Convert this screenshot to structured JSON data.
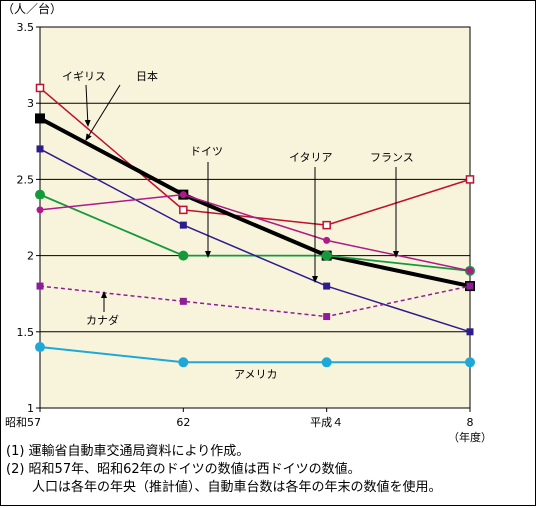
{
  "chart_data": {
    "type": "line",
    "unit_label": "（人／台）",
    "x": [
      "昭和57",
      "62",
      "平成４",
      "8"
    ],
    "x_suffix": "（年度）",
    "ylim": [
      1,
      3.5
    ],
    "yticks": [
      "1",
      "1.5",
      "2",
      "2.5",
      "3",
      "3.5"
    ],
    "grid": true,
    "background_color": "#f8f4dc",
    "series": [
      {
        "name": "イギリス",
        "values": [
          3.1,
          2.3,
          2.2,
          2.5
        ],
        "color": "#c0102e",
        "marker": "open-square",
        "width": 1.5,
        "dash": false
      },
      {
        "name": "日本",
        "values": [
          2.9,
          2.4,
          2.0,
          1.8
        ],
        "color": "#000000",
        "marker": "square",
        "width": 4,
        "dash": false
      },
      {
        "name": "ドイツ",
        "values": [
          2.4,
          2.0,
          2.0,
          1.9
        ],
        "color": "#159a3a",
        "marker": "circle",
        "width": 1.8,
        "dash": false
      },
      {
        "name": "イタリア",
        "values": [
          2.7,
          2.2,
          1.8,
          1.5
        ],
        "color": "#2c1d8a",
        "marker": "square",
        "width": 1.5,
        "dash": false
      },
      {
        "name": "フランス",
        "values": [
          2.3,
          2.4,
          2.1,
          1.9
        ],
        "color": "#b0198a",
        "marker": "circle",
        "width": 1.5,
        "dash": false
      },
      {
        "name": "カナダ",
        "values": [
          1.8,
          1.7,
          1.6,
          1.8
        ],
        "color": "#8e1d9a",
        "marker": "square",
        "width": 1.5,
        "dash": true
      },
      {
        "name": "アメリカ",
        "values": [
          1.4,
          1.3,
          1.3,
          1.3
        ],
        "color": "#1ea8d8",
        "marker": "circle",
        "width": 2,
        "dash": false
      }
    ]
  },
  "notes": [
    "(1)  運輸省自動車交通局資料により作成。",
    "(2)  昭和57年、昭和62年のドイツの数値は西ドイツの数値。",
    "人口は各年の年央（推計値）、自動車台数は各年の年末の数値を使用。"
  ]
}
